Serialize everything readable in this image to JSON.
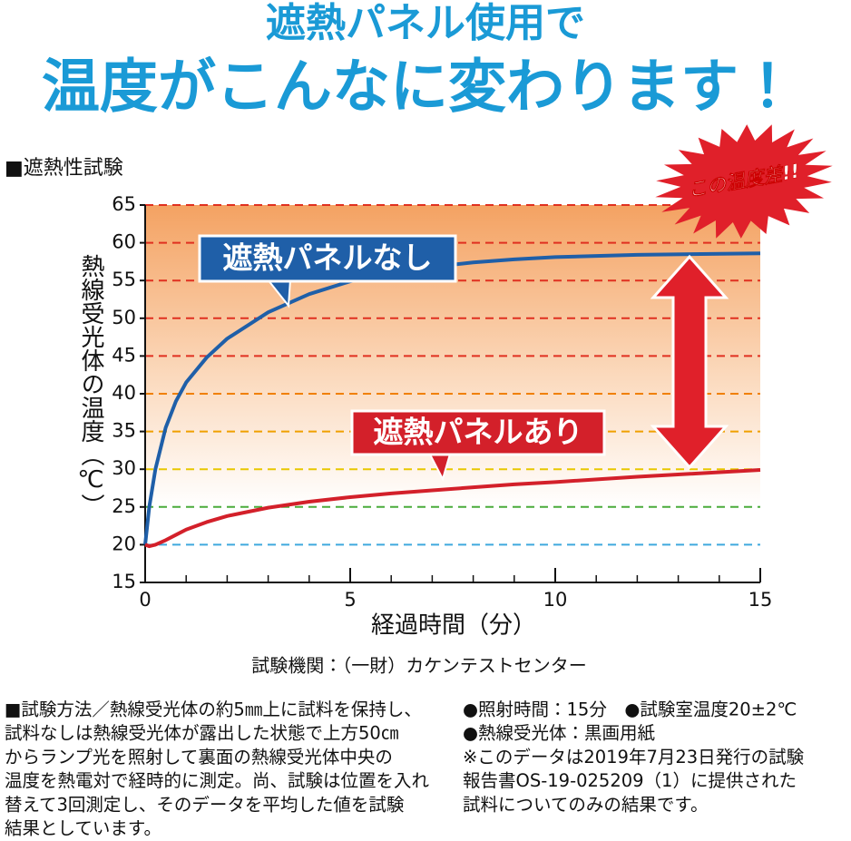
{
  "header": {
    "title": "遮熱パネル使用で",
    "subtitle": "温度がこんなに変わります！"
  },
  "chart_data": {
    "type": "line",
    "title": "■遮熱性試験",
    "x_label": "経過時間（分）",
    "y_label": "熱線受光体の温度（℃）",
    "x": [
      0,
      0.1,
      0.25,
      0.5,
      0.75,
      1,
      1.5,
      2,
      3,
      4,
      5,
      6,
      7,
      8,
      9,
      10,
      12,
      15
    ],
    "series": [
      {
        "name": "遮熱パネルなし",
        "color": "#1f5fa8",
        "values": [
          20,
          25,
          30,
          35.5,
          39,
          41.5,
          44.8,
          47.3,
          50.8,
          53.2,
          54.9,
          56,
          56.8,
          57.4,
          57.8,
          58.1,
          58.4,
          58.6
        ]
      },
      {
        "name": "遮熱パネルあり",
        "color": "#d3202a",
        "values": [
          20,
          19.8,
          20,
          20.6,
          21.3,
          22,
          23,
          23.8,
          24.9,
          25.7,
          26.3,
          26.8,
          27.2,
          27.6,
          28,
          28.3,
          29,
          29.9
        ]
      }
    ],
    "xlim": [
      0,
      15
    ],
    "xticks": [
      0,
      5,
      10,
      15
    ],
    "ylim": [
      15,
      65
    ],
    "yticks": [
      15,
      20,
      25,
      30,
      35,
      40,
      45,
      50,
      55,
      60,
      65
    ],
    "grid": true,
    "grid_colors": [
      null,
      "#3fa9dd",
      "#4aab3a",
      "#e8c700",
      "#f0a000",
      "#f08000",
      "#e03020",
      "#e03020",
      "#e03020",
      "#e03020",
      "#e03020"
    ],
    "annotation": "この温度差!!",
    "source": "試験機関：（一財）カケンテストセンター"
  },
  "notes": {
    "left": [
      "■試験方法／熱線受光体の約5㎜上に試料を保持し、",
      "試料なしは熱線受光体が露出した状態で上方50㎝",
      "からランプ光を照射して裏面の熱線受光体中央の",
      "温度を熱電対で経時的に測定。尚、試験は位置を入れ",
      "替えて3回測定し、そのデータを平均した値を試験",
      "結果としています。"
    ],
    "right": [
      "●照射時間：15分　●試験室温度20±2℃",
      "●熱線受光体：黒画用紙",
      "※このデータは2019年7月23日発行の試験",
      "報告書OS-19-025209（1）に提供された",
      "試料についてのみの結果です。"
    ]
  }
}
